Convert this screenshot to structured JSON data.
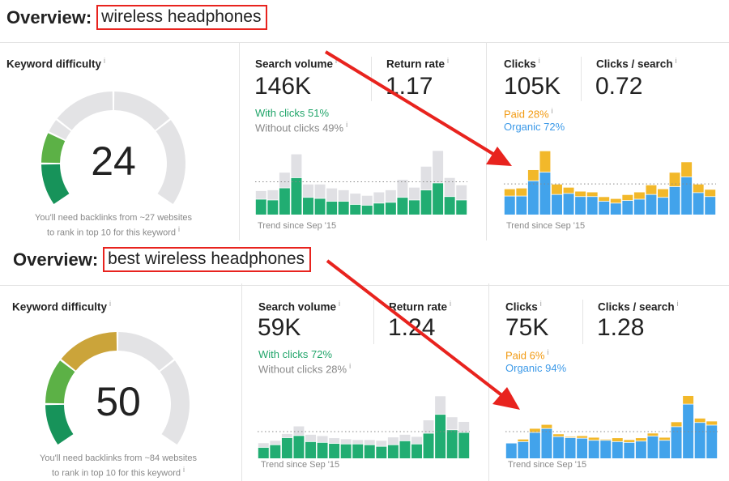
{
  "panels": [
    {
      "overview_label": "Overview:",
      "keyword": "wireless headphones",
      "kd": {
        "label": "Keyword difficulty",
        "value": "24",
        "score": 24,
        "note1": "You'll need backlinks from ~27 websites",
        "note2": "to rank in top 10 for this keyword"
      },
      "search_volume": {
        "label": "Search volume",
        "value": "146K",
        "with_clicks": "With clicks 51%",
        "without_clicks": "Without clicks 49%"
      },
      "return_rate": {
        "label": "Return rate",
        "value": "1.17"
      },
      "clicks": {
        "label": "Clicks",
        "value": "105K",
        "paid": "Paid 28%",
        "organic": "Organic 72%"
      },
      "clicks_per_search": {
        "label": "Clicks / search",
        "value": "0.72"
      },
      "trend_label": "Trend since Sep '15"
    },
    {
      "overview_label": "Overview:",
      "keyword": "best wireless headphones",
      "kd": {
        "label": "Keyword difficulty",
        "value": "50",
        "score": 50,
        "note1": "You'll need backlinks from ~84 websites",
        "note2": "to rank in top 10 for this keyword"
      },
      "search_volume": {
        "label": "Search volume",
        "value": "59K",
        "with_clicks": "With clicks 72%",
        "without_clicks": "Without clicks 28%"
      },
      "return_rate": {
        "label": "Return rate",
        "value": "1.24"
      },
      "clicks": {
        "label": "Clicks",
        "value": "75K",
        "paid": "Paid 6%",
        "organic": "Organic 94%"
      },
      "clicks_per_search": {
        "label": "Clicks / search",
        "value": "1.28"
      },
      "trend_label": "Trend since Sep '15"
    }
  ],
  "colors": {
    "green": "#21ad72",
    "gray_bar": "#e0e0e4",
    "blue": "#42a3eb",
    "paid": "#f2b82a",
    "arrow": "#e8231e"
  },
  "chart_data": [
    {
      "type": "bar",
      "title": "Search volume trend (wireless headphones)",
      "stacked": true,
      "ylim": [
        0,
        250
      ],
      "avg": 125,
      "series": [
        {
          "name": "With clicks",
          "values": [
            60,
            57,
            103,
            142,
            67,
            63,
            52,
            52,
            40,
            37,
            45,
            48,
            67,
            57,
            95,
            122,
            70,
            57
          ]
        },
        {
          "name": "Without clicks",
          "values": [
            30,
            36,
            57,
            88,
            48,
            52,
            48,
            41,
            40,
            35,
            40,
            45,
            66,
            46,
            88,
            121,
            70,
            55
          ]
        }
      ]
    },
    {
      "type": "bar",
      "title": "Clicks trend (wireless headphones)",
      "stacked": true,
      "ylim": [
        0,
        250
      ],
      "avg": 117,
      "series": [
        {
          "name": "Organic",
          "values": [
            72,
            72,
            130,
            163,
            78,
            82,
            70,
            70,
            52,
            45,
            55,
            60,
            78,
            67,
            108,
            145,
            85,
            70
          ]
        },
        {
          "name": "Paid",
          "values": [
            25,
            28,
            40,
            79,
            37,
            21,
            18,
            15,
            15,
            15,
            20,
            25,
            34,
            30,
            52,
            55,
            30,
            25
          ]
        }
      ]
    },
    {
      "type": "bar",
      "title": "Search volume trend (best wireless headphones)",
      "stacked": true,
      "ylim": [
        0,
        250
      ],
      "avg": 102,
      "series": [
        {
          "name": "With clicks",
          "values": [
            43,
            53,
            80,
            88,
            65,
            62,
            58,
            56,
            56,
            53,
            47,
            53,
            68,
            56,
            97,
            169,
            110,
            100
          ]
        },
        {
          "name": "Without clicks",
          "values": [
            15,
            14,
            13,
            34,
            25,
            23,
            19,
            17,
            14,
            17,
            20,
            27,
            22,
            26,
            48,
            68,
            47,
            39
          ]
        }
      ]
    },
    {
      "type": "bar",
      "title": "Clicks trend (best wireless headphones)",
      "stacked": true,
      "ylim": [
        0,
        250
      ],
      "avg": 102,
      "series": [
        {
          "name": "Organic",
          "values": [
            57,
            65,
            100,
            115,
            84,
            80,
            78,
            70,
            70,
            65,
            62,
            67,
            86,
            70,
            122,
            208,
            138,
            128
          ]
        },
        {
          "name": "Paid",
          "values": [
            0,
            7,
            13,
            13,
            8,
            2,
            7,
            9,
            2,
            12,
            8,
            10,
            9,
            9,
            16,
            30,
            14,
            13
          ]
        }
      ]
    }
  ]
}
